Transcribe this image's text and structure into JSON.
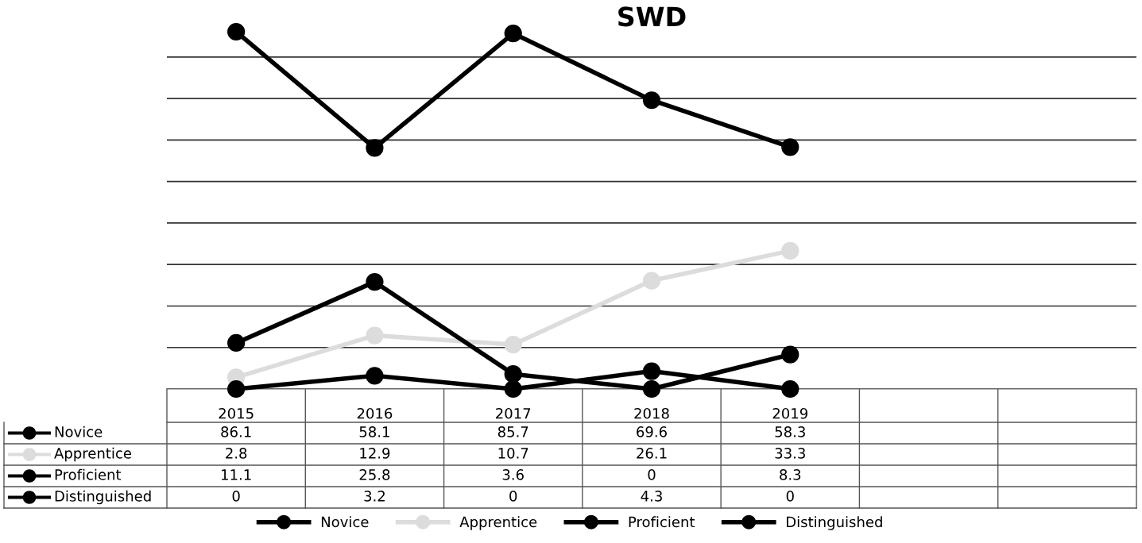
{
  "chart_data": {
    "type": "line",
    "title": "SWD",
    "categories": [
      "2015",
      "2016",
      "2017",
      "2018",
      "2019",
      null,
      null
    ],
    "series": [
      {
        "name": "Novice",
        "color": "#000000",
        "values": [
          86.1,
          58.1,
          85.7,
          69.6,
          58.3,
          null,
          null
        ]
      },
      {
        "name": "Apprentice",
        "color": "#dcdcdc",
        "values": [
          2.8,
          12.9,
          10.7,
          26.1,
          33.3,
          null,
          null
        ]
      },
      {
        "name": "Proficient",
        "color": "#000000",
        "values": [
          11.1,
          25.8,
          3.6,
          0,
          8.3,
          null,
          null
        ]
      },
      {
        "name": "Distinguished",
        "color": "#000000",
        "values": [
          0,
          3.2,
          0,
          4.3,
          0,
          null,
          null
        ]
      }
    ],
    "tick_labels": "x",
    "grid": "y",
    "legend": "bottom",
    "marker": "circle",
    "line_style": "solid",
    "data_labels": true
  }
}
